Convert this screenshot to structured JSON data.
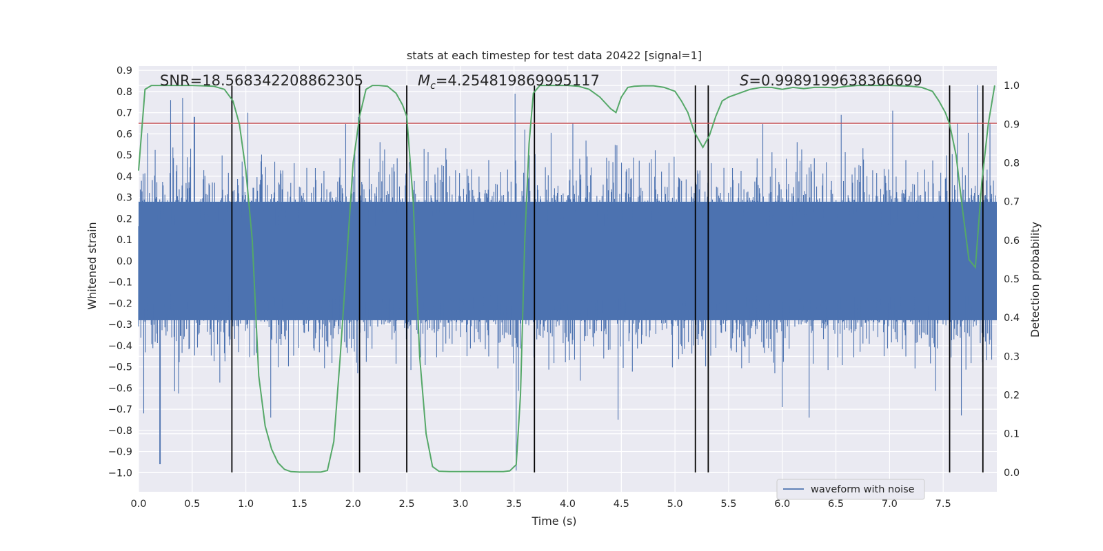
{
  "chart_data": {
    "type": "line",
    "title": "stats at each timestep for test data 20422 [signal=1]",
    "xlabel": "Time (s)",
    "ylabel": "Whitened strain",
    "y2label": "Detection probability",
    "xlim": [
      0.0,
      8.0
    ],
    "ylim": [
      -1.09,
      0.92
    ],
    "y2lim": [
      -0.05,
      1.05
    ],
    "xticks": [
      0.0,
      0.5,
      1.0,
      1.5,
      2.0,
      2.5,
      3.0,
      3.5,
      4.0,
      4.5,
      5.0,
      5.5,
      6.0,
      6.5,
      7.0,
      7.5
    ],
    "xtick_labels": [
      "0.0",
      "0.5",
      "1.0",
      "1.5",
      "2.0",
      "2.5",
      "3.0",
      "3.5",
      "4.0",
      "4.5",
      "5.0",
      "5.5",
      "6.0",
      "6.5",
      "7.0",
      "7.5"
    ],
    "yticks": [
      0.9,
      0.8,
      0.7,
      0.6,
      0.5,
      0.4,
      0.3,
      0.2,
      0.1,
      0.0,
      -0.1,
      -0.2,
      -0.3,
      -0.4,
      -0.5,
      -0.6,
      -0.7,
      -0.8,
      -0.9,
      -1.0
    ],
    "ytick_labels": [
      "0.9",
      "0.8",
      "0.7",
      "0.6",
      "0.5",
      "0.4",
      "0.3",
      "0.2",
      "0.1",
      "0.0",
      "−0.1",
      "−0.2",
      "−0.3",
      "−0.4",
      "−0.5",
      "−0.6",
      "−0.7",
      "−0.8",
      "−0.9",
      "−1.0"
    ],
    "y2ticks": [
      0.0,
      0.1,
      0.2,
      0.3,
      0.4,
      0.5,
      0.6,
      0.7,
      0.8,
      0.9,
      1.0
    ],
    "y2tick_labels": [
      "0.0",
      "0.1",
      "0.2",
      "0.3",
      "0.4",
      "0.5",
      "0.6",
      "0.7",
      "0.8",
      "0.9",
      "1.0"
    ],
    "grid": true,
    "legend": {
      "position": "bottom-right",
      "entries": [
        "waveform with noise"
      ]
    },
    "annotations": {
      "snr": "SNR=18.568342208862305",
      "mc_symbol": "M",
      "mc_sub": "c",
      "mc_value": "=4.254819869995117",
      "s_symbol": "S",
      "s_value": "=0.9989199638366699"
    },
    "waveform": {
      "name": "waveform with noise",
      "color": "#4c72b0",
      "description_only": false,
      "typical_amplitude": 0.28,
      "peak_positive": [
        [
          0.3,
          0.76
        ],
        [
          0.41,
          0.77
        ],
        [
          0.52,
          0.68
        ],
        [
          1.02,
          0.7
        ],
        [
          2.05,
          0.68
        ],
        [
          3.51,
          0.79
        ],
        [
          3.6,
          0.62
        ],
        [
          6.55,
          0.69
        ],
        [
          7.03,
          0.71
        ],
        [
          7.63,
          0.65
        ],
        [
          7.82,
          0.83
        ]
      ],
      "peak_negative": [
        [
          0.2,
          -0.96
        ],
        [
          0.05,
          -0.72
        ],
        [
          1.23,
          -0.74
        ],
        [
          3.52,
          -0.99
        ],
        [
          4.47,
          -0.75
        ],
        [
          6.0,
          -0.69
        ],
        [
          6.25,
          -0.74
        ],
        [
          7.67,
          -0.73
        ]
      ],
      "seed": 20422
    },
    "threshold": {
      "value": 0.65,
      "color": "#c44e52"
    },
    "probability": {
      "color": "#55a868",
      "x": [
        0.0,
        0.06,
        0.12,
        0.2,
        0.3,
        0.4,
        0.5,
        0.6,
        0.7,
        0.8,
        0.88,
        0.94,
        1.0,
        1.06,
        1.12,
        1.18,
        1.24,
        1.3,
        1.36,
        1.42,
        1.5,
        1.6,
        1.7,
        1.76,
        1.82,
        1.88,
        1.94,
        2.0,
        2.06,
        2.12,
        2.18,
        2.24,
        2.32,
        2.4,
        2.46,
        2.5,
        2.56,
        2.62,
        2.68,
        2.74,
        2.8,
        2.9,
        3.0,
        3.1,
        3.2,
        3.3,
        3.4,
        3.46,
        3.52,
        3.56,
        3.6,
        3.64,
        3.68,
        3.74,
        3.8,
        3.9,
        4.0,
        4.1,
        4.2,
        4.3,
        4.4,
        4.45,
        4.5,
        4.56,
        4.62,
        4.7,
        4.8,
        4.9,
        5.0,
        5.06,
        5.12,
        5.18,
        5.26,
        5.32,
        5.38,
        5.44,
        5.5,
        5.6,
        5.7,
        5.8,
        5.9,
        6.0,
        6.1,
        6.2,
        6.3,
        6.4,
        6.5,
        6.6,
        6.7,
        6.8,
        6.9,
        7.0,
        7.1,
        7.2,
        7.3,
        7.4,
        7.46,
        7.52,
        7.56,
        7.62,
        7.68,
        7.74,
        7.8,
        7.86,
        7.92,
        7.98
      ],
      "y": [
        0.78,
        0.99,
        1.0,
        1.0,
        1.0,
        1.0,
        1.0,
        0.999,
        0.998,
        0.99,
        0.96,
        0.9,
        0.78,
        0.6,
        0.25,
        0.12,
        0.06,
        0.025,
        0.008,
        0.002,
        0.001,
        0.001,
        0.001,
        0.005,
        0.08,
        0.3,
        0.55,
        0.8,
        0.92,
        0.99,
        1.0,
        1.0,
        0.998,
        0.98,
        0.95,
        0.92,
        0.7,
        0.3,
        0.1,
        0.015,
        0.003,
        0.002,
        0.002,
        0.002,
        0.002,
        0.002,
        0.002,
        0.004,
        0.02,
        0.2,
        0.6,
        0.85,
        0.98,
        1.0,
        1.0,
        1.0,
        1.0,
        0.998,
        0.99,
        0.97,
        0.94,
        0.93,
        0.97,
        0.995,
        0.998,
        0.999,
        0.999,
        0.995,
        0.985,
        0.96,
        0.93,
        0.88,
        0.84,
        0.87,
        0.92,
        0.96,
        0.97,
        0.98,
        0.99,
        0.995,
        0.995,
        0.99,
        0.995,
        0.992,
        0.995,
        0.995,
        0.994,
        0.998,
        1.0,
        1.0,
        1.0,
        1.0,
        0.999,
        0.998,
        0.995,
        0.985,
        0.96,
        0.93,
        0.9,
        0.82,
        0.68,
        0.55,
        0.53,
        0.75,
        0.9,
        1.0
      ]
    },
    "event_lines": [
      0.87,
      2.06,
      2.5,
      3.69,
      5.19,
      5.31,
      7.56,
      7.87
    ],
    "event_line_color": "#000000"
  }
}
